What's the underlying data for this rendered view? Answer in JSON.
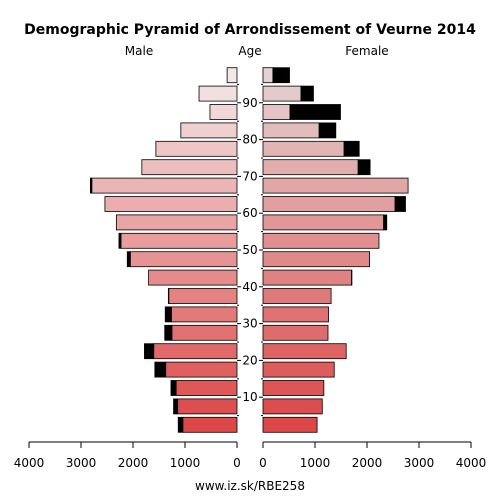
{
  "chart_data": {
    "type": "bar",
    "title": "Demographic Pyramid of Arrondissement of Veurne 2014",
    "left_label": "Male",
    "center_label": "Age",
    "right_label": "Female",
    "footer": "www.iz.sk/RBE258",
    "x_range": [
      0,
      4000
    ],
    "x_ticks": [
      0,
      1000,
      2000,
      3000,
      4000
    ],
    "x_tick_labels": [
      "0",
      "1000",
      "2000",
      "3000",
      "4000"
    ],
    "age_ticks": [
      10,
      20,
      30,
      40,
      50,
      60,
      70,
      80,
      90
    ],
    "series_note": "black segment = excess over opposite sex",
    "groups": [
      {
        "age": "0-4",
        "male": 1130,
        "female": 1040
      },
      {
        "age": "5-9",
        "male": 1220,
        "female": 1140
      },
      {
        "age": "10-14",
        "male": 1270,
        "female": 1170
      },
      {
        "age": "15-19",
        "male": 1580,
        "female": 1370
      },
      {
        "age": "20-24",
        "male": 1780,
        "female": 1600
      },
      {
        "age": "25-29",
        "male": 1390,
        "female": 1250
      },
      {
        "age": "30-34",
        "male": 1380,
        "female": 1260
      },
      {
        "age": "35-39",
        "male": 1320,
        "female": 1310
      },
      {
        "age": "40-44",
        "male": 1700,
        "female": 1710
      },
      {
        "age": "45-49",
        "male": 2110,
        "female": 2050
      },
      {
        "age": "50-54",
        "male": 2270,
        "female": 2230
      },
      {
        "age": "55-59",
        "male": 2320,
        "female": 2380
      },
      {
        "age": "60-64",
        "male": 2540,
        "female": 2740
      },
      {
        "age": "65-69",
        "male": 2820,
        "female": 2790
      },
      {
        "age": "70-74",
        "male": 1830,
        "female": 2060
      },
      {
        "age": "75-79",
        "male": 1560,
        "female": 1850
      },
      {
        "age": "80-84",
        "male": 1080,
        "female": 1400
      },
      {
        "age": "85-89",
        "male": 520,
        "female": 1490
      },
      {
        "age": "90-94",
        "male": 730,
        "female": 970
      },
      {
        "age": "95+",
        "male": 190,
        "female": 510
      }
    ]
  }
}
